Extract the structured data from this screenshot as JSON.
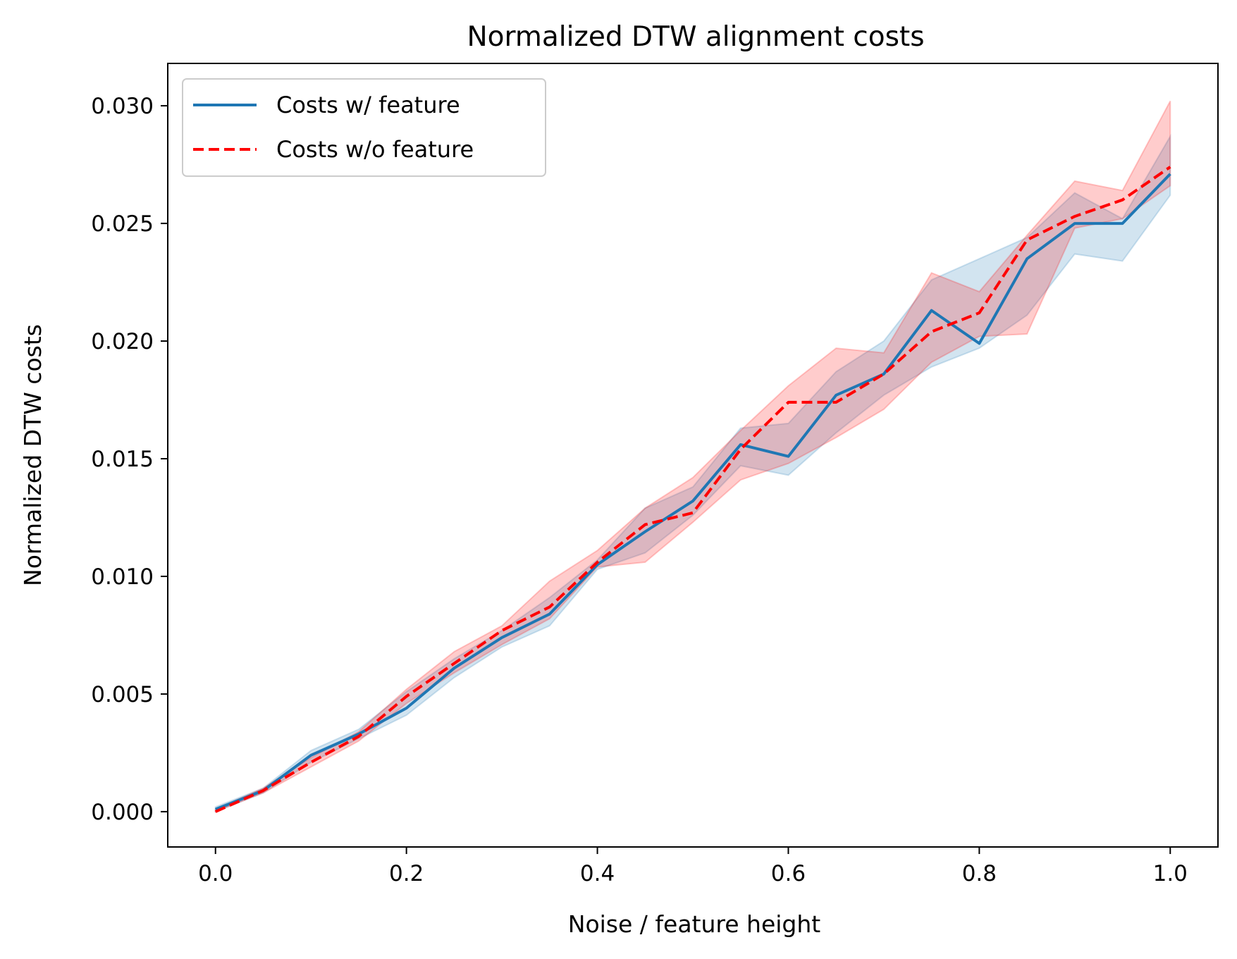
{
  "chart_data": {
    "type": "line",
    "title": "Normalized DTW alignment costs",
    "xlabel": "Noise / feature height",
    "ylabel": "Normalized DTW costs",
    "xlim": [
      -0.05,
      1.05
    ],
    "ylim": [
      -0.0015,
      0.0318
    ],
    "xticks": [
      0.0,
      0.2,
      0.4,
      0.6,
      0.8,
      1.0
    ],
    "xtick_labels": [
      "0.0",
      "0.2",
      "0.4",
      "0.6",
      "0.8",
      "1.0"
    ],
    "yticks": [
      0.0,
      0.005,
      0.01,
      0.015,
      0.02,
      0.025,
      0.03
    ],
    "ytick_labels": [
      "0.000",
      "0.005",
      "0.010",
      "0.015",
      "0.020",
      "0.025",
      "0.030"
    ],
    "grid": false,
    "legend_position": "top-left",
    "x": [
      0.0,
      0.05,
      0.1,
      0.15,
      0.2,
      0.25,
      0.3,
      0.35,
      0.4,
      0.45,
      0.5,
      0.55,
      0.6,
      0.65,
      0.7,
      0.75,
      0.8,
      0.85,
      0.9,
      0.95,
      1.0
    ],
    "series": [
      {
        "name": "Costs w/ feature",
        "color": "#1f77b4",
        "line_style": "solid",
        "values": [
          0.0001,
          0.0009,
          0.0024,
          0.0033,
          0.0044,
          0.0061,
          0.0074,
          0.0084,
          0.0105,
          0.0119,
          0.0132,
          0.0156,
          0.0151,
          0.0177,
          0.0186,
          0.0213,
          0.0199,
          0.0235,
          0.025,
          0.025,
          0.0271
        ],
        "band_lower": [
          0.0,
          0.0008,
          0.0021,
          0.0031,
          0.0041,
          0.0057,
          0.007,
          0.0079,
          0.0103,
          0.011,
          0.0126,
          0.0147,
          0.0143,
          0.0161,
          0.0177,
          0.0189,
          0.0197,
          0.0211,
          0.0237,
          0.0234,
          0.0262
        ],
        "band_upper": [
          0.0002,
          0.001,
          0.0026,
          0.0035,
          0.0051,
          0.0065,
          0.0077,
          0.0091,
          0.0107,
          0.0129,
          0.0138,
          0.0163,
          0.0165,
          0.0187,
          0.02,
          0.0226,
          0.0235,
          0.0244,
          0.0263,
          0.0252,
          0.0287
        ],
        "band_color": "#1f77b4"
      },
      {
        "name": "Costs w/o feature",
        "color": "#ff0000",
        "line_style": "dashed",
        "values": [
          0.0,
          0.0009,
          0.0021,
          0.0032,
          0.0049,
          0.0063,
          0.0077,
          0.0087,
          0.0106,
          0.0122,
          0.0127,
          0.0154,
          0.0174,
          0.0174,
          0.0186,
          0.0204,
          0.0212,
          0.0243,
          0.0253,
          0.026,
          0.0274
        ],
        "band_lower": [
          0.0,
          0.0008,
          0.0019,
          0.003,
          0.0046,
          0.0059,
          0.0071,
          0.0082,
          0.0104,
          0.0106,
          0.0123,
          0.0141,
          0.0148,
          0.0159,
          0.0171,
          0.0191,
          0.0202,
          0.0203,
          0.0248,
          0.0252,
          0.0266
        ],
        "band_upper": [
          0.0001,
          0.001,
          0.0023,
          0.0034,
          0.0052,
          0.0068,
          0.0079,
          0.0098,
          0.0111,
          0.0129,
          0.0142,
          0.0162,
          0.0181,
          0.0197,
          0.0195,
          0.0229,
          0.0221,
          0.0245,
          0.0268,
          0.0264,
          0.0302
        ],
        "band_color": "#ff0000"
      }
    ]
  }
}
